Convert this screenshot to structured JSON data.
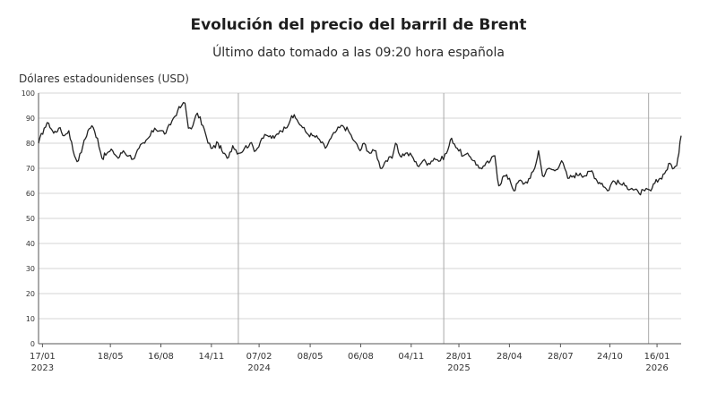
{
  "chart_data": {
    "type": "line",
    "title": "Evolución del precio del barril de Brent",
    "subtitle": "Último dato tomado a las 09:20 hora española",
    "ylabel": "Dólares estadounidenses (USD)",
    "xlabel": "",
    "ylim": [
      0,
      100
    ],
    "yticks": [
      0,
      10,
      20,
      30,
      40,
      50,
      60,
      70,
      80,
      90,
      100
    ],
    "x_range": [
      "2023-01-10",
      "2026-02-28"
    ],
    "grid": true,
    "year_dividers": [
      "2024-01-01",
      "2025-01-01",
      "2026-01-01"
    ],
    "xticks": [
      {
        "date": "2023-01-17",
        "label": "17/01",
        "year": "2023"
      },
      {
        "date": "2023-05-18",
        "label": "18/05",
        "year": ""
      },
      {
        "date": "2023-08-16",
        "label": "16/08",
        "year": ""
      },
      {
        "date": "2023-11-14",
        "label": "14/11",
        "year": ""
      },
      {
        "date": "2024-02-07",
        "label": "07/02",
        "year": "2024"
      },
      {
        "date": "2024-05-08",
        "label": "08/05",
        "year": ""
      },
      {
        "date": "2024-08-06",
        "label": "06/08",
        "year": ""
      },
      {
        "date": "2024-11-04",
        "label": "04/11",
        "year": ""
      },
      {
        "date": "2025-01-28",
        "label": "28/01",
        "year": "2025"
      },
      {
        "date": "2025-04-28",
        "label": "28/04",
        "year": ""
      },
      {
        "date": "2025-07-28",
        "label": "28/07",
        "year": ""
      },
      {
        "date": "2025-10-24",
        "label": "24/10",
        "year": ""
      },
      {
        "date": "2026-01-16",
        "label": "16/01",
        "year": "2026"
      }
    ],
    "series": [
      {
        "color": "#222222",
        "points": [
          [
            "2023-01-10",
            80
          ],
          [
            "2023-01-20",
            86
          ],
          [
            "2023-01-28",
            88
          ],
          [
            "2023-02-06",
            84
          ],
          [
            "2023-02-15",
            86
          ],
          [
            "2023-02-25",
            83
          ],
          [
            "2023-03-05",
            85
          ],
          [
            "2023-03-15",
            75
          ],
          [
            "2023-03-22",
            73
          ],
          [
            "2023-03-30",
            79
          ],
          [
            "2023-04-08",
            85
          ],
          [
            "2023-04-15",
            87
          ],
          [
            "2023-04-25",
            82
          ],
          [
            "2023-05-03",
            74
          ],
          [
            "2023-05-12",
            76
          ],
          [
            "2023-05-22",
            77
          ],
          [
            "2023-06-01",
            74
          ],
          [
            "2023-06-10",
            77
          ],
          [
            "2023-06-20",
            75
          ],
          [
            "2023-06-30",
            74
          ],
          [
            "2023-07-08",
            78
          ],
          [
            "2023-07-18",
            80
          ],
          [
            "2023-07-28",
            83
          ],
          [
            "2023-08-05",
            86
          ],
          [
            "2023-08-15",
            85
          ],
          [
            "2023-08-25",
            84
          ],
          [
            "2023-09-05",
            89
          ],
          [
            "2023-09-15",
            93
          ],
          [
            "2023-09-22",
            95
          ],
          [
            "2023-09-28",
            96
          ],
          [
            "2023-10-04",
            86
          ],
          [
            "2023-10-12",
            87
          ],
          [
            "2023-10-20",
            92
          ],
          [
            "2023-10-30",
            87
          ],
          [
            "2023-11-08",
            80
          ],
          [
            "2023-11-16",
            78
          ],
          [
            "2023-11-26",
            80
          ],
          [
            "2023-12-05",
            76
          ],
          [
            "2023-12-12",
            74
          ],
          [
            "2023-12-22",
            79
          ],
          [
            "2024-01-02",
            76
          ],
          [
            "2024-01-12",
            78
          ],
          [
            "2024-01-22",
            80
          ],
          [
            "2024-02-01",
            77
          ],
          [
            "2024-02-12",
            82
          ],
          [
            "2024-02-22",
            83
          ],
          [
            "2024-03-05",
            82
          ],
          [
            "2024-03-15",
            85
          ],
          [
            "2024-03-25",
            86
          ],
          [
            "2024-04-05",
            91
          ],
          [
            "2024-04-12",
            90
          ],
          [
            "2024-04-22",
            87
          ],
          [
            "2024-05-02",
            84
          ],
          [
            "2024-05-12",
            83
          ],
          [
            "2024-05-22",
            82
          ],
          [
            "2024-06-04",
            78
          ],
          [
            "2024-06-14",
            82
          ],
          [
            "2024-06-24",
            85
          ],
          [
            "2024-07-05",
            87
          ],
          [
            "2024-07-15",
            85
          ],
          [
            "2024-07-25",
            81
          ],
          [
            "2024-08-05",
            77
          ],
          [
            "2024-08-12",
            80
          ],
          [
            "2024-08-22",
            76
          ],
          [
            "2024-09-02",
            77
          ],
          [
            "2024-09-10",
            70
          ],
          [
            "2024-09-20",
            73
          ],
          [
            "2024-10-01",
            74
          ],
          [
            "2024-10-07",
            80
          ],
          [
            "2024-10-15",
            75
          ],
          [
            "2024-10-25",
            76
          ],
          [
            "2024-11-05",
            75
          ],
          [
            "2024-11-15",
            71
          ],
          [
            "2024-11-25",
            73
          ],
          [
            "2024-12-05",
            72
          ],
          [
            "2024-12-15",
            74
          ],
          [
            "2024-12-26",
            73
          ],
          [
            "2025-01-06",
            76
          ],
          [
            "2025-01-15",
            82
          ],
          [
            "2025-01-25",
            78
          ],
          [
            "2025-02-05",
            75
          ],
          [
            "2025-02-15",
            75
          ],
          [
            "2025-02-25",
            73
          ],
          [
            "2025-03-05",
            70
          ],
          [
            "2025-03-15",
            71
          ],
          [
            "2025-03-25",
            73
          ],
          [
            "2025-04-02",
            75
          ],
          [
            "2025-04-09",
            63
          ],
          [
            "2025-04-18",
            67
          ],
          [
            "2025-04-28",
            66
          ],
          [
            "2025-05-06",
            61
          ],
          [
            "2025-05-15",
            65
          ],
          [
            "2025-05-25",
            64
          ],
          [
            "2025-06-04",
            66
          ],
          [
            "2025-06-12",
            70
          ],
          [
            "2025-06-19",
            77
          ],
          [
            "2025-06-26",
            67
          ],
          [
            "2025-07-08",
            70
          ],
          [
            "2025-07-18",
            69
          ],
          [
            "2025-07-30",
            73
          ],
          [
            "2025-08-10",
            66
          ],
          [
            "2025-08-20",
            67
          ],
          [
            "2025-09-01",
            68
          ],
          [
            "2025-09-10",
            67
          ],
          [
            "2025-09-22",
            69
          ],
          [
            "2025-10-01",
            65
          ],
          [
            "2025-10-10",
            64
          ],
          [
            "2025-10-20",
            61
          ],
          [
            "2025-10-30",
            65
          ],
          [
            "2025-11-10",
            64
          ],
          [
            "2025-11-20",
            63
          ],
          [
            "2025-12-02",
            62
          ],
          [
            "2025-12-15",
            60
          ],
          [
            "2025-12-25",
            61
          ],
          [
            "2026-01-05",
            61
          ],
          [
            "2026-01-12",
            64
          ],
          [
            "2026-01-22",
            66
          ],
          [
            "2026-02-01",
            69
          ],
          [
            "2026-02-08",
            72
          ],
          [
            "2026-02-15",
            70
          ],
          [
            "2026-02-20",
            71
          ],
          [
            "2026-02-24",
            76
          ],
          [
            "2026-02-28",
            83
          ]
        ]
      }
    ]
  }
}
